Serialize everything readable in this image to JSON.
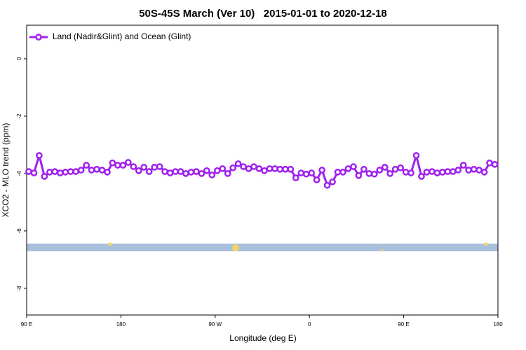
{
  "chart_data": {
    "type": "line",
    "title": "50S-45S March (Ver 10)   2015-01-01 to 2020-12-18",
    "x_label": "Longitude (deg E)",
    "y_label": "XCO2 - MLO trend (ppm)",
    "x": [
      92,
      97,
      102,
      107,
      112,
      117,
      122,
      127,
      132,
      137,
      142,
      147,
      152,
      157,
      162,
      167,
      172,
      177,
      182,
      187,
      192,
      197,
      202,
      207,
      212,
      217,
      222,
      227,
      232,
      237,
      242,
      247,
      252,
      257,
      262,
      267,
      272,
      277,
      282,
      287,
      292,
      297,
      302,
      307,
      312,
      317,
      322,
      327,
      332,
      337,
      342,
      347,
      352,
      357,
      362,
      367,
      372,
      377,
      382,
      387,
      392,
      397,
      402,
      407,
      412,
      417,
      422,
      427,
      432,
      437,
      442,
      447,
      452,
      457,
      462,
      467,
      472,
      477,
      482,
      487,
      492,
      497,
      502,
      507,
      512,
      517,
      522,
      527,
      532,
      537
    ],
    "series": [
      {
        "name": "Land (Nadir&Glint) and Ocean (Glint)",
        "color": "#a020f0",
        "values": [
          -3.93,
          -3.98,
          -3.37,
          -4.1,
          -3.95,
          -3.93,
          -3.98,
          -3.95,
          -3.93,
          -3.93,
          -3.88,
          -3.71,
          -3.88,
          -3.85,
          -3.88,
          -3.95,
          -3.63,
          -3.71,
          -3.71,
          -3.61,
          -3.76,
          -3.9,
          -3.78,
          -3.93,
          -3.78,
          -3.76,
          -3.93,
          -3.98,
          -3.93,
          -3.93,
          -4.0,
          -3.95,
          -3.93,
          -4.0,
          -3.9,
          -4.05,
          -3.9,
          -3.83,
          -4.0,
          -3.8,
          -3.66,
          -3.76,
          -3.83,
          -3.76,
          -3.83,
          -3.9,
          -3.83,
          -3.83,
          -3.85,
          -3.85,
          -3.85,
          -4.15,
          -3.98,
          -4.02,
          -3.98,
          -4.22,
          -3.88,
          -4.41,
          -4.29,
          -3.95,
          -3.95,
          -3.83,
          -3.76,
          -4.07,
          -3.85,
          -4.0,
          -4.02,
          -3.88,
          -3.78,
          -4.0,
          -3.85,
          -3.8,
          -3.95,
          -3.98,
          -3.37,
          -4.1,
          -3.95,
          -3.93,
          -3.98,
          -3.95,
          -3.93,
          -3.93,
          -3.88,
          -3.71,
          -3.88,
          -3.85,
          -3.88,
          -3.95,
          -3.63,
          -3.68
        ]
      }
    ],
    "xlim": [
      90,
      540
    ],
    "xticks": [
      {
        "value": 90,
        "label": "90 E"
      },
      180,
      {
        "value": 270,
        "label": "90 W"
      },
      {
        "value": 360,
        "label": "0"
      },
      {
        "value": 450,
        "label": "90 E"
      },
      {
        "value": 540,
        "label": "180"
      }
    ],
    "ylim": [
      -8.93,
      1.17
    ],
    "yticks": [
      0,
      -2,
      -4,
      -6,
      -8
    ],
    "legend": "top-left"
  }
}
